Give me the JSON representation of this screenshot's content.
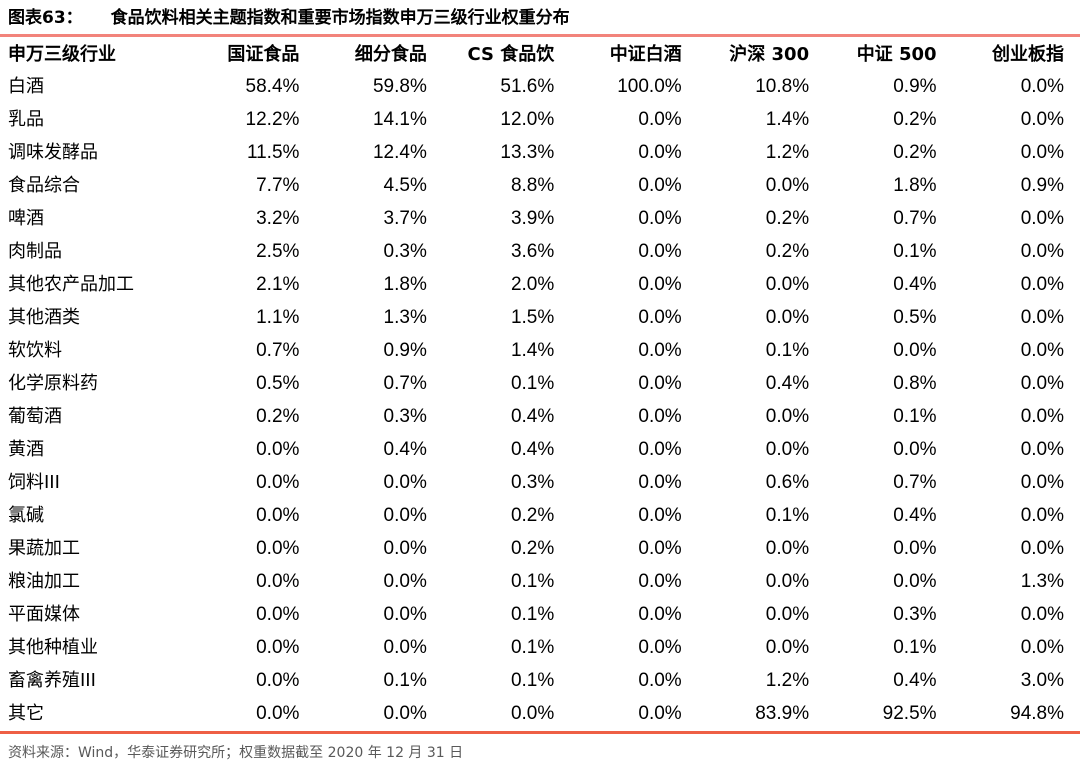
{
  "figure": {
    "label": "图表63：",
    "title": "食品饮料相关主题指数和重要市场指数申万三级行业权重分布"
  },
  "chart_data": {
    "type": "table",
    "title": "食品饮料相关主题指数和重要市场指数申万三级行业权重分布",
    "columns": [
      "申万三级行业",
      "国证食品",
      "细分食品",
      "CS 食品饮",
      "中证白酒",
      "沪深 300",
      "中证 500",
      "创业板指"
    ],
    "rows": [
      {
        "industry": "白酒",
        "values": [
          "58.4%",
          "59.8%",
          "51.6%",
          "100.0%",
          "10.8%",
          "0.9%",
          "0.0%"
        ]
      },
      {
        "industry": "乳品",
        "values": [
          "12.2%",
          "14.1%",
          "12.0%",
          "0.0%",
          "1.4%",
          "0.2%",
          "0.0%"
        ]
      },
      {
        "industry": "调味发酵品",
        "values": [
          "11.5%",
          "12.4%",
          "13.3%",
          "0.0%",
          "1.2%",
          "0.2%",
          "0.0%"
        ]
      },
      {
        "industry": "食品综合",
        "values": [
          "7.7%",
          "4.5%",
          "8.8%",
          "0.0%",
          "0.0%",
          "1.8%",
          "0.9%"
        ]
      },
      {
        "industry": "啤酒",
        "values": [
          "3.2%",
          "3.7%",
          "3.9%",
          "0.0%",
          "0.2%",
          "0.7%",
          "0.0%"
        ]
      },
      {
        "industry": "肉制品",
        "values": [
          "2.5%",
          "0.3%",
          "3.6%",
          "0.0%",
          "0.2%",
          "0.1%",
          "0.0%"
        ]
      },
      {
        "industry": "其他农产品加工",
        "values": [
          "2.1%",
          "1.8%",
          "2.0%",
          "0.0%",
          "0.0%",
          "0.4%",
          "0.0%"
        ]
      },
      {
        "industry": "其他酒类",
        "values": [
          "1.1%",
          "1.3%",
          "1.5%",
          "0.0%",
          "0.0%",
          "0.5%",
          "0.0%"
        ]
      },
      {
        "industry": "软饮料",
        "values": [
          "0.7%",
          "0.9%",
          "1.4%",
          "0.0%",
          "0.1%",
          "0.0%",
          "0.0%"
        ]
      },
      {
        "industry": "化学原料药",
        "values": [
          "0.5%",
          "0.7%",
          "0.1%",
          "0.0%",
          "0.4%",
          "0.8%",
          "0.0%"
        ]
      },
      {
        "industry": "葡萄酒",
        "values": [
          "0.2%",
          "0.3%",
          "0.4%",
          "0.0%",
          "0.0%",
          "0.1%",
          "0.0%"
        ]
      },
      {
        "industry": "黄酒",
        "values": [
          "0.0%",
          "0.4%",
          "0.4%",
          "0.0%",
          "0.0%",
          "0.0%",
          "0.0%"
        ]
      },
      {
        "industry": "饲料III",
        "values": [
          "0.0%",
          "0.0%",
          "0.3%",
          "0.0%",
          "0.6%",
          "0.7%",
          "0.0%"
        ]
      },
      {
        "industry": "氯碱",
        "values": [
          "0.0%",
          "0.0%",
          "0.2%",
          "0.0%",
          "0.1%",
          "0.4%",
          "0.0%"
        ]
      },
      {
        "industry": "果蔬加工",
        "values": [
          "0.0%",
          "0.0%",
          "0.2%",
          "0.0%",
          "0.0%",
          "0.0%",
          "0.0%"
        ]
      },
      {
        "industry": "粮油加工",
        "values": [
          "0.0%",
          "0.0%",
          "0.1%",
          "0.0%",
          "0.0%",
          "0.0%",
          "1.3%"
        ]
      },
      {
        "industry": "平面媒体",
        "values": [
          "0.0%",
          "0.0%",
          "0.1%",
          "0.0%",
          "0.0%",
          "0.3%",
          "0.0%"
        ]
      },
      {
        "industry": "其他种植业",
        "values": [
          "0.0%",
          "0.0%",
          "0.1%",
          "0.0%",
          "0.0%",
          "0.1%",
          "0.0%"
        ]
      },
      {
        "industry": "畜禽养殖III",
        "values": [
          "0.0%",
          "0.1%",
          "0.1%",
          "0.0%",
          "1.2%",
          "0.4%",
          "3.0%"
        ]
      },
      {
        "industry": "其它",
        "values": [
          "0.0%",
          "0.0%",
          "0.0%",
          "0.0%",
          "83.9%",
          "92.5%",
          "94.8%"
        ]
      }
    ]
  },
  "footer": {
    "source_note": "资料来源：Wind，华泰证券研究所；权重数据截至 2020 年 12 月 31 日"
  },
  "colors": {
    "rule_top": "#F2837B",
    "rule_bottom": "#EE5F45",
    "body_text": "#000000",
    "footer_text": "#595959"
  }
}
